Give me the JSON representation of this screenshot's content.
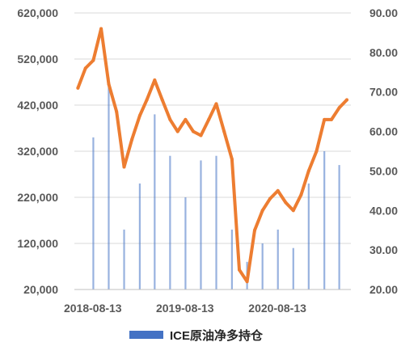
{
  "chart_data": {
    "type": "bar+line",
    "title": "",
    "legend": {
      "position": "bottom",
      "entries": [
        {
          "label": "ICE原油净多持仓",
          "color": "#4472c4"
        }
      ]
    },
    "x_labels": [
      "2018-08-13",
      "2019-08-13",
      "2020-08-13"
    ],
    "left_axis": {
      "ylim": [
        20000,
        620000
      ],
      "ticks": [
        "620,000",
        "520,000",
        "420,000",
        "320,000",
        "220,000",
        "120,000",
        "20,000"
      ],
      "grid": true
    },
    "right_axis": {
      "ylim": [
        20,
        90
      ],
      "ticks": [
        "90.00",
        "80.00",
        "70.00",
        "60.00",
        "50.00",
        "40.00",
        "30.00",
        "20.00"
      ]
    },
    "series": [
      {
        "name": "ICE原油净多持仓",
        "type": "bar",
        "axis": "left",
        "color": "#4472c4",
        "x": [
          "2018-08",
          "2018-10",
          "2018-12",
          "2019-02",
          "2019-04",
          "2019-06",
          "2019-08",
          "2019-10",
          "2019-12",
          "2020-02",
          "2020-04",
          "2020-06",
          "2020-08",
          "2020-10",
          "2020-12",
          "2021-02",
          "2021-04"
        ],
        "values": [
          350000,
          480000,
          150000,
          250000,
          400000,
          310000,
          220000,
          300000,
          310000,
          150000,
          80000,
          120000,
          150000,
          110000,
          250000,
          320000,
          290000
        ]
      },
      {
        "type": "line",
        "axis": "right",
        "color": "#ed7d31",
        "x": [
          "2018-06",
          "2018-07",
          "2018-08",
          "2018-09",
          "2018-10",
          "2018-11",
          "2018-12",
          "2019-01",
          "2019-02",
          "2019-03",
          "2019-04",
          "2019-05",
          "2019-06",
          "2019-07",
          "2019-08",
          "2019-09",
          "2019-10",
          "2019-11",
          "2019-12",
          "2020-01",
          "2020-02",
          "2020-03",
          "2020-04",
          "2020-05",
          "2020-06",
          "2020-07",
          "2020-08",
          "2020-09",
          "2020-10",
          "2020-11",
          "2020-12",
          "2021-01",
          "2021-02",
          "2021-03",
          "2021-04",
          "2021-05"
        ],
        "values": [
          71,
          76,
          78,
          86,
          72,
          65,
          51,
          58,
          64,
          68,
          73,
          68,
          63,
          60,
          63,
          60,
          59,
          63,
          67,
          60,
          53,
          25,
          22,
          35,
          40,
          43,
          45,
          42,
          40,
          44,
          50,
          55,
          63,
          63,
          66,
          68
        ]
      }
    ]
  }
}
